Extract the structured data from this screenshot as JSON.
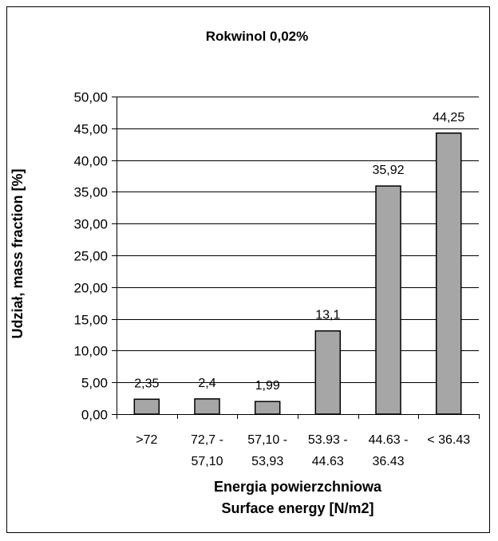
{
  "chart_data": {
    "type": "bar",
    "title": "Rokwinol 0,02%",
    "xlabel_lines": [
      "Energia powierzchniowa",
      "Surface energy [N/m2]"
    ],
    "ylabel": "Udział, mass fraction [%]",
    "categories": [
      [
        ">72"
      ],
      [
        "72,7 -",
        "57,10"
      ],
      [
        "57,10 -",
        "53,93"
      ],
      [
        "53.93 -",
        "44.63"
      ],
      [
        "44.63 -",
        "36.43"
      ],
      [
        "< 36.43"
      ]
    ],
    "values": [
      2.35,
      2.4,
      1.99,
      13.1,
      35.92,
      44.25
    ],
    "value_labels": [
      "2,35",
      "2,4",
      "1,99",
      "13,1",
      "35,92",
      "44,25"
    ],
    "ylim": [
      0,
      50
    ],
    "y_ticks": [
      0,
      5,
      10,
      15,
      20,
      25,
      30,
      35,
      40,
      45,
      50
    ],
    "y_tick_labels": [
      "0,00",
      "5,00",
      "10,00",
      "15,00",
      "20,00",
      "25,00",
      "30,00",
      "35,00",
      "40,00",
      "45,00",
      "50,00"
    ],
    "grid": true,
    "bar_color": "#a6a6a6",
    "bar_edge_color": "#000000",
    "grid_color": "#000000"
  }
}
